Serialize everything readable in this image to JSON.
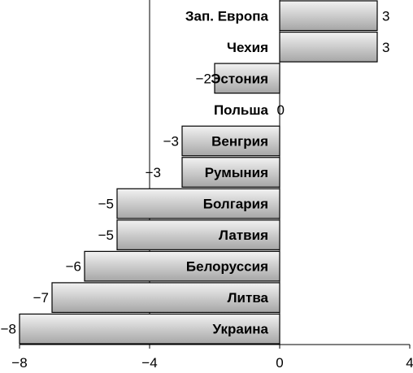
{
  "chart_data": {
    "type": "bar",
    "orientation": "horizontal",
    "categories": [
      "Зап. Европа",
      "Чехия",
      "Эстония",
      "Польша",
      "Венгрия",
      "Румыния",
      "Болгария",
      "Латвия",
      "Белоруссия",
      "Литва",
      "Украина"
    ],
    "values": [
      3,
      3,
      -2,
      0,
      -3,
      -3,
      -5,
      -5,
      -6,
      -7,
      -8
    ],
    "value_labels": [
      "3",
      "3",
      "−2",
      "0",
      "−3",
      "−3",
      "−5",
      "−5",
      "−6",
      "−7",
      "−8"
    ],
    "xlim": [
      -8,
      4
    ],
    "x_ticks": [
      -8,
      -4,
      0,
      4
    ],
    "x_tick_labels": [
      "−8",
      "−4",
      "0",
      "4"
    ],
    "grid": "vertical line at −4",
    "title": "",
    "xlabel": "",
    "ylabel": "",
    "bar_gradient": [
      "#f2f2f2",
      "#a6a6a6"
    ]
  }
}
